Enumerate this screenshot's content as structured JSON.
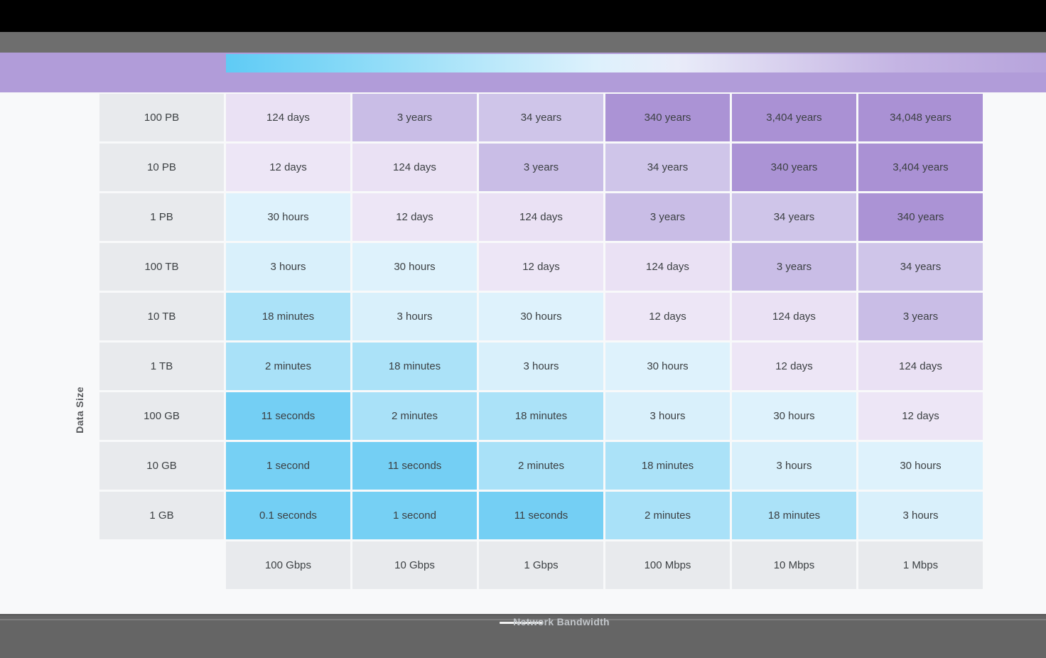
{
  "palette": {
    "top_bar": "#000000",
    "toolbar_gray": "#6e6e6e",
    "header_band_purple": "#b19cd9",
    "header_gradient_start": "#5fcbf5",
    "header_gradient_end": "#b7a4dc",
    "page_background": "#f8f9fa",
    "bottom_bar": "#656565",
    "label_cell_background": "#e8eaed",
    "cell_text": "#3c4043"
  },
  "player": {
    "icons": {
      "fullscreen": "fullscreen-icon",
      "progress_bar_top": "progress-bar",
      "progress_bar_bottom": "progress-bar"
    }
  },
  "chart_data": {
    "type": "heatmap",
    "title": "",
    "xlabel": "Network Bandwidth",
    "ylabel": "Data Size",
    "rows": [
      "100 PB",
      "10 PB",
      "1 PB",
      "100 TB",
      "10 TB",
      "1 TB",
      "100 GB",
      "10 GB",
      "1 GB"
    ],
    "columns": [
      "100 Gbps",
      "10 Gbps",
      "1 Gbps",
      "100 Mbps",
      "10 Mbps",
      "1 Mbps"
    ],
    "values": [
      [
        "124 days",
        "3 years",
        "34 years",
        "340 years",
        "3,404 years",
        "34,048 years"
      ],
      [
        "12 days",
        "124 days",
        "3 years",
        "34 years",
        "340 years",
        "3,404 years"
      ],
      [
        "30 hours",
        "12 days",
        "124 days",
        "3 years",
        "34 years",
        "340 years"
      ],
      [
        "3 hours",
        "30 hours",
        "12 days",
        "124 days",
        "3 years",
        "34 years"
      ],
      [
        "18 minutes",
        "3 hours",
        "30 hours",
        "12 days",
        "124 days",
        "3 years"
      ],
      [
        "2 minutes",
        "18 minutes",
        "3 hours",
        "30 hours",
        "12 days",
        "124 days"
      ],
      [
        "11 seconds",
        "2 minutes",
        "18 minutes",
        "3 hours",
        "30 hours",
        "12 days"
      ],
      [
        "1 second",
        "11 seconds",
        "2 minutes",
        "18 minutes",
        "3 hours",
        "30 hours"
      ],
      [
        "0.1 seconds",
        "1 second",
        "11 seconds",
        "2 minutes",
        "18 minutes",
        "3 hours"
      ]
    ],
    "color_scale": {
      "0.1 seconds": "#73cff4",
      "1 second": "#76d0f4",
      "11 seconds": "#74cff4",
      "2 minutes": "#a9e1f8",
      "18 minutes": "#abe2f8",
      "3 hours": "#d9f0fb",
      "30 hours": "#def2fc",
      "12 days": "#ede6f6",
      "124 days": "#eae1f4",
      "3 years": "#c9bde6",
      "34 years": "#cfc5e9",
      "340 years": "#ab93d5",
      "3,404 years": "#aa91d4",
      "34,048 years": "#aa91d4"
    },
    "layout": {
      "grid": "off",
      "legend": "none",
      "row_axis_side": "left",
      "column_labels_position": "bottom"
    }
  }
}
